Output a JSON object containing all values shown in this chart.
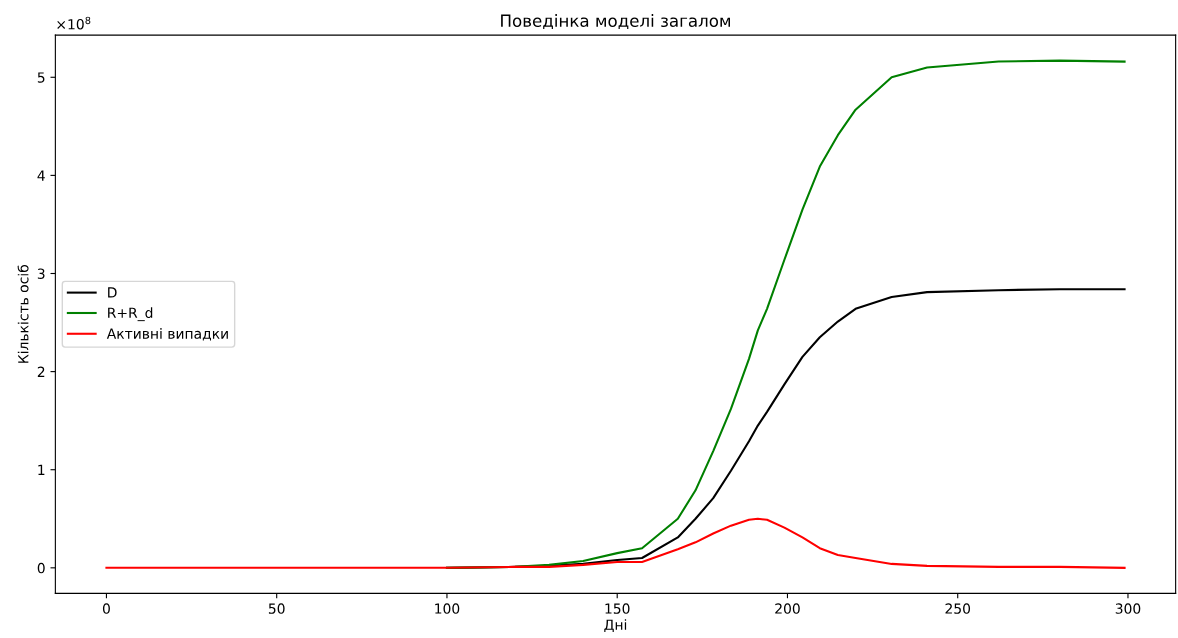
{
  "chart_data": {
    "type": "line",
    "title": "Поведінка моделі загалом",
    "xlabel": "Дні",
    "ylabel": "Кількість осіб",
    "annotations": [
      "×10$^{8}$"
    ],
    "x": [
      0,
      50,
      100,
      120,
      130,
      140,
      150,
      157.3,
      167.8,
      173,
      178.2,
      183.4,
      188.7,
      191.3,
      194,
      199.1,
      204.4,
      209.5,
      214.8,
      220,
      230.6,
      241,
      262,
      280,
      299
    ],
    "series": [
      {
        "name": "D",
        "color": "#000000",
        "values": [
          null,
          null,
          0.0,
          0.01,
          0.02,
          0.04,
          0.08,
          0.1,
          0.31,
          0.5,
          0.71,
          0.99,
          1.29,
          1.45,
          1.59,
          1.87,
          2.15,
          2.35,
          2.51,
          2.64,
          2.76,
          2.81,
          2.83,
          2.84,
          2.84
        ]
      },
      {
        "name": "R+R_d",
        "color": "#008000",
        "values": [
          null,
          null,
          0.0,
          0.01,
          0.03,
          0.07,
          0.15,
          0.2,
          0.5,
          0.79,
          1.19,
          1.62,
          2.13,
          2.42,
          2.64,
          3.14,
          3.65,
          4.09,
          4.41,
          4.67,
          5.0,
          5.1,
          5.16,
          5.17,
          5.16
        ]
      },
      {
        "name": "Активні випадки",
        "color": "#ff0000",
        "values": [
          0,
          0,
          0.0,
          0.01,
          0.01,
          0.03,
          0.06,
          0.06,
          0.19,
          0.26,
          0.35,
          0.43,
          0.49,
          0.5,
          0.49,
          0.41,
          0.31,
          0.2,
          0.13,
          0.1,
          0.04,
          0.02,
          0.01,
          0.01,
          0.0
        ]
      }
    ],
    "xlim": [
      -15,
      314
    ],
    "xticks": [
      0,
      50,
      100,
      150,
      200,
      250,
      300
    ],
    "ylim": [
      -0.26,
      5.43
    ],
    "yticks": [
      0,
      1,
      2,
      3,
      4,
      5
    ],
    "legend": "center left",
    "grid": false,
    "line_style": "solid",
    "marker": "none"
  }
}
